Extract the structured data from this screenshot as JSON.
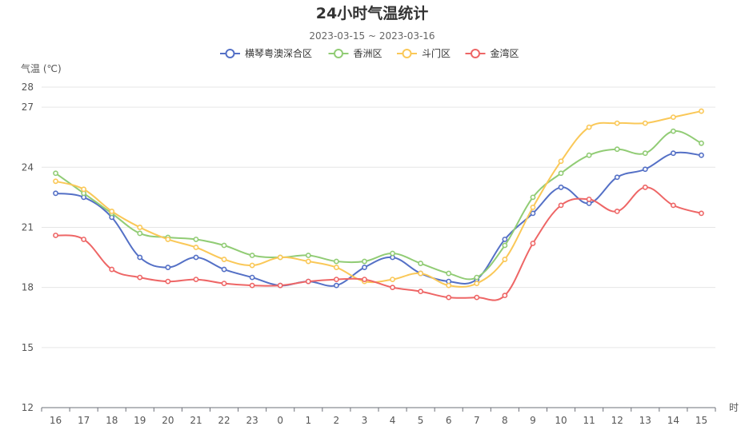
{
  "chart_data": {
    "type": "line",
    "title": "24小时气温统计",
    "subtitle": "2023-03-15 ~ 2023-03-16",
    "ylabel": "气温 (℃)",
    "xlabel": "时",
    "ylim": [
      12,
      28
    ],
    "yticks": [
      12,
      15,
      18,
      21,
      24,
      27,
      28
    ],
    "categories": [
      "16",
      "17",
      "18",
      "19",
      "20",
      "21",
      "22",
      "23",
      "0",
      "1",
      "2",
      "3",
      "4",
      "5",
      "6",
      "7",
      "8",
      "9",
      "10",
      "11",
      "12",
      "13",
      "14",
      "15"
    ],
    "legend_position": "top-center",
    "grid": true,
    "series": [
      {
        "name": "横琴粤澳深合区",
        "color": "#5470c6",
        "values": [
          22.7,
          22.5,
          21.5,
          19.5,
          19.0,
          19.5,
          18.9,
          18.5,
          18.1,
          18.3,
          18.1,
          19.0,
          19.5,
          18.7,
          18.3,
          18.4,
          20.4,
          21.7,
          23.0,
          22.2,
          23.5,
          23.9,
          24.7,
          24.6
        ]
      },
      {
        "name": "香洲区",
        "color": "#91cc75",
        "values": [
          23.7,
          22.7,
          21.7,
          20.7,
          20.5,
          20.4,
          20.1,
          19.6,
          19.5,
          19.6,
          19.3,
          19.3,
          19.7,
          19.2,
          18.7,
          18.5,
          20.1,
          22.5,
          23.7,
          24.6,
          24.9,
          24.7,
          25.8,
          25.2
        ]
      },
      {
        "name": "斗门区",
        "color": "#fac858",
        "values": [
          23.3,
          22.9,
          21.8,
          21.0,
          20.4,
          20.0,
          19.4,
          19.1,
          19.5,
          19.3,
          19.0,
          18.3,
          18.4,
          18.7,
          18.1,
          18.2,
          19.4,
          22.0,
          24.3,
          26.0,
          26.2,
          26.2,
          26.5,
          26.8
        ]
      },
      {
        "name": "金湾区",
        "color": "#ee6666",
        "values": [
          20.6,
          20.4,
          18.9,
          18.5,
          18.3,
          18.4,
          18.2,
          18.1,
          18.1,
          18.3,
          18.4,
          18.4,
          18.0,
          17.8,
          17.5,
          17.5,
          17.6,
          20.2,
          22.1,
          22.4,
          21.8,
          23.0,
          22.1,
          21.7
        ]
      }
    ]
  }
}
